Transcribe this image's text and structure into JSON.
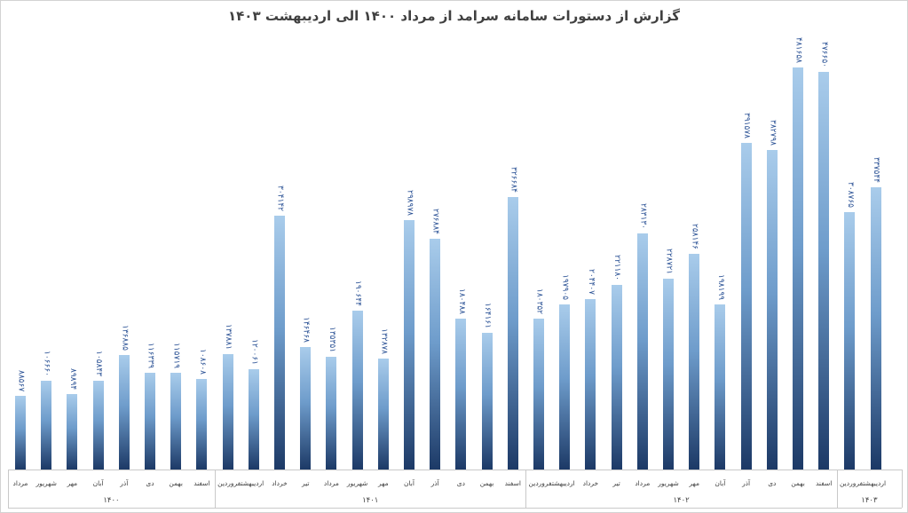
{
  "title": "گزارش از دستورات سامانه سرامد از مرداد ۱۴۰۰ الی اردیبهشت ۱۴۰۳",
  "colors": {
    "bar_gradient_top": "#a9cceb",
    "bar_gradient_mid": "#6e9ccb",
    "bar_gradient_bottom": "#1c3966",
    "value_label": "#2f5597",
    "axis_line": "#c9c9c9",
    "axis_text": "#404040",
    "title_text": "#404040",
    "border": "#d3d3d3",
    "background": "#ffffff"
  },
  "chart_data": {
    "type": "bar",
    "title": "گزارش از دستورات سامانه سرامد از مرداد ۱۴۰۰ الی اردیبهشت ۱۴۰۳",
    "xlabel": "",
    "ylabel": "",
    "ylim": [
      0,
      520000
    ],
    "grid": false,
    "legend": false,
    "y_axis_visible": false,
    "bar_label_rotation": "vertical-top-to-bottom",
    "groups": [
      {
        "year": "۱۴۰۰",
        "months": [
          "مرداد",
          "شهریور",
          "مهر",
          "آبان",
          "آذر",
          "دی",
          "بهمن",
          "اسفند"
        ],
        "values": [
          88567,
          106660,
          89894,
          105843,
          136885,
          116339,
          115719,
          108608
        ],
        "value_labels": [
          "۸۸۵۶۷",
          "۱۰۶۶۶۰",
          "۸۹۸۹۴",
          "۱۰۵۸۴۳",
          "۱۳۶۸۸۵",
          "۱۱۶۳۳۹",
          "۱۱۵۷۱۹",
          "۱۰۸۶۰۸"
        ],
        "axis_labels": [
          {
            "text": "مرداد",
            "span": 1
          },
          {
            "text": "شهریور",
            "span": 1
          },
          {
            "text": "مهر",
            "span": 1
          },
          {
            "text": "آبان",
            "span": 1
          },
          {
            "text": "آذر",
            "span": 1
          },
          {
            "text": "دی",
            "span": 1
          },
          {
            "text": "بهمن",
            "span": 1
          },
          {
            "text": "اسفند",
            "span": 1
          }
        ]
      },
      {
        "year": "۱۴۰۱",
        "months": [
          "فروردین",
          "اردیبهشت",
          "خرداد",
          "تیر",
          "مرداد",
          "شهریور",
          "مهر",
          "آبان",
          "آذر",
          "دی",
          "بهمن",
          "اسفند"
        ],
        "values": [
          137881,
          120061,
          304142,
          146468,
          135351,
          190644,
          132878,
          298978,
          276884,
          180488,
          164161,
          326684
        ],
        "value_labels": [
          "۱۳۷۸۸۱",
          "۱۲۰۰۶۱",
          "۳۰۴۱۴۲",
          "۱۴۶۴۶۸",
          "۱۳۵۳۵۱",
          "۱۹۰۶۴۴",
          "۱۳۲۸۷۸",
          "۲۹۸۹۷۸",
          "۲۷۶۸۸۴",
          "۱۸۰۴۸۸",
          "۱۶۴۱۶۱",
          "۳۲۶۶۸۴"
        ],
        "axis_labels": [
          {
            "text": "اردیبهشتفروردین",
            "span": 2
          },
          {
            "text": "خرداد",
            "span": 1
          },
          {
            "text": "تیر",
            "span": 1
          },
          {
            "text": "مرداد",
            "span": 1
          },
          {
            "text": "شهریور",
            "span": 1
          },
          {
            "text": "مهر",
            "span": 1
          },
          {
            "text": "آبان",
            "span": 1
          },
          {
            "text": "آذر",
            "span": 1
          },
          {
            "text": "دی",
            "span": 1
          },
          {
            "text": "بهمن",
            "span": 1
          },
          {
            "text": "اسفند",
            "span": 1
          }
        ]
      },
      {
        "year": "۱۴۰۲",
        "months": [
          "فروردین",
          "اردیبهشت",
          "خرداد",
          "تیر",
          "مرداد",
          "شهریور",
          "مهر",
          "آبان",
          "آذر",
          "دی",
          "بهمن",
          "اسفند"
        ],
        "values": [
          180352,
          197905,
          204407,
          221180,
          283130,
          228721,
          258146,
          198199,
          391578,
          382798,
          481658,
          476650
        ],
        "value_labels": [
          "۱۸۰۳۵۲",
          "۱۹۷۹۰۵",
          "۲۰۴۴۰۷",
          "۲۲۱۱۸۰",
          "۲۸۳۱۳۰",
          "۲۲۸۷۲۱",
          "۲۵۸۱۴۶",
          "۱۹۸۱۹۹",
          "۳۹۱۵۷۸",
          "۳۸۲۷۹۸",
          "۴۸۱۶۵۸",
          "۴۷۶۶۵۰"
        ],
        "axis_labels": [
          {
            "text": "اردیبهشتفروردین",
            "span": 2
          },
          {
            "text": "خرداد",
            "span": 1
          },
          {
            "text": "تیر",
            "span": 1
          },
          {
            "text": "مرداد",
            "span": 1
          },
          {
            "text": "شهریور",
            "span": 1
          },
          {
            "text": "مهر",
            "span": 1
          },
          {
            "text": "آبان",
            "span": 1
          },
          {
            "text": "آذر",
            "span": 1
          },
          {
            "text": "دی",
            "span": 1
          },
          {
            "text": "بهمن",
            "span": 1
          },
          {
            "text": "اسفند",
            "span": 1
          }
        ]
      },
      {
        "year": "۱۴۰۳",
        "months": [
          "فروردین",
          "اردیبهشت"
        ],
        "values": [
          308765,
          337544
        ],
        "value_labels": [
          "۳۰۸۷۶۵",
          "۳۳۷۵۴۴"
        ],
        "axis_labels": [
          {
            "text": "اردیبهشتفروردین",
            "span": 2
          }
        ]
      }
    ]
  }
}
